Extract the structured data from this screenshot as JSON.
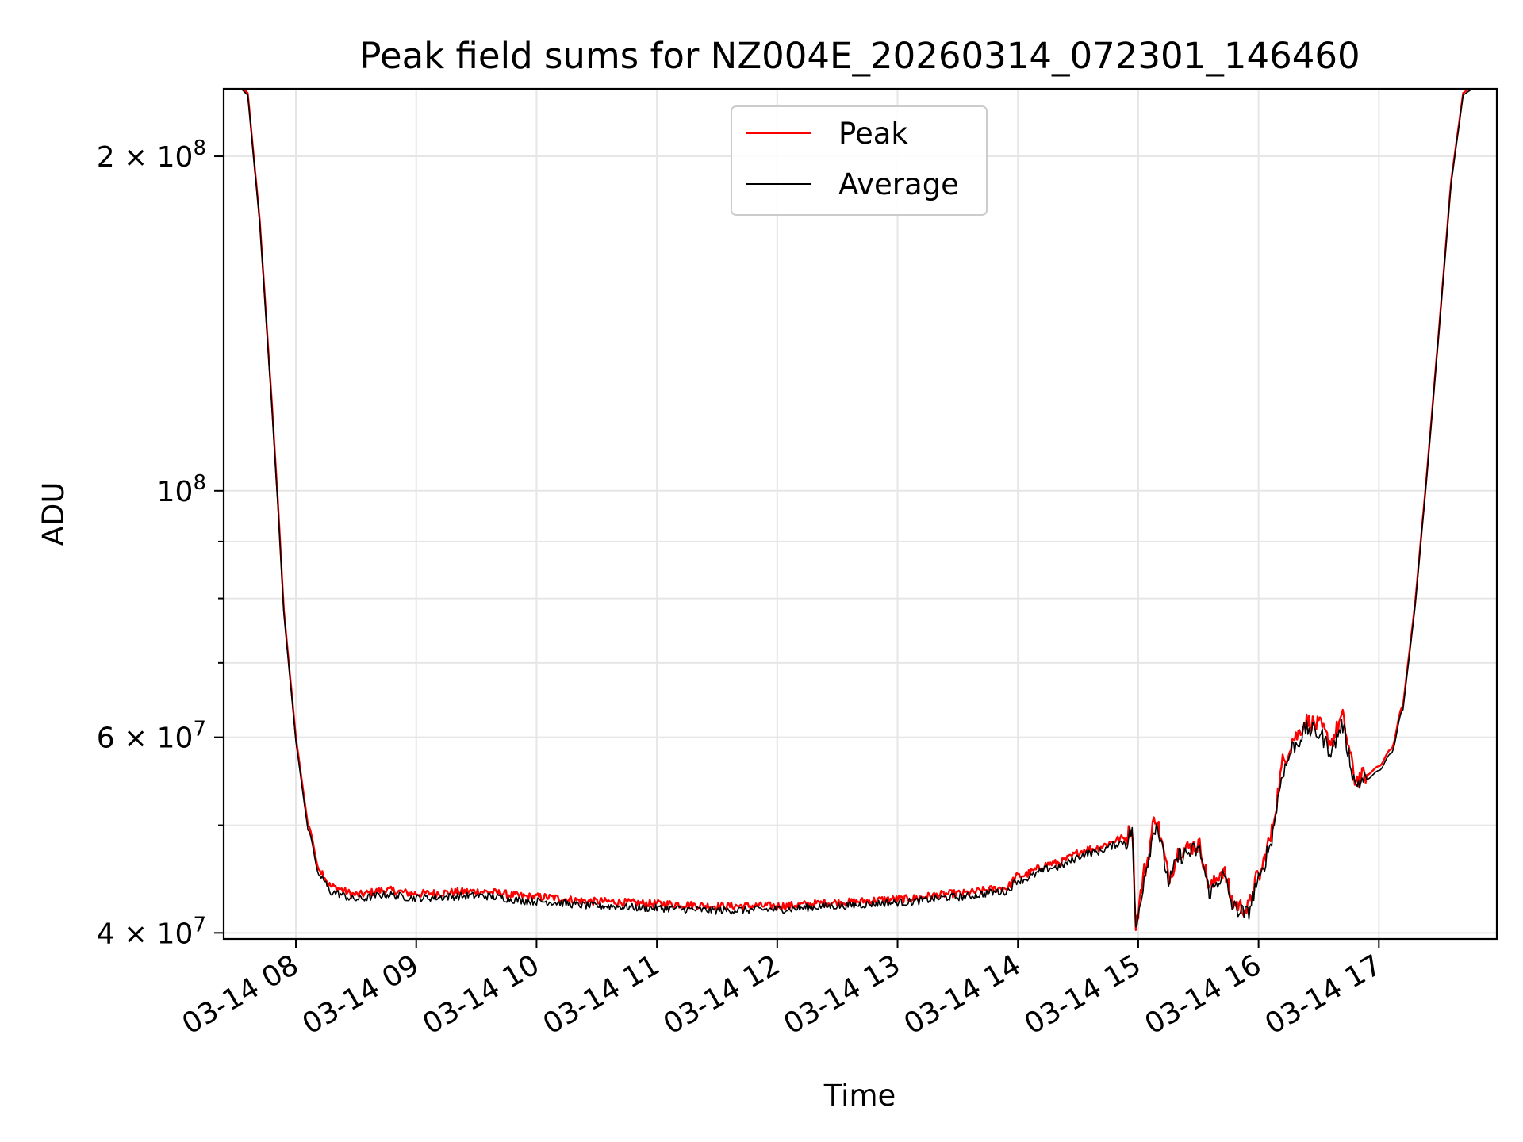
{
  "chart_data": {
    "type": "line",
    "title": "Peak field sums for NZ004E_20260314_072301_146460",
    "xlabel": "Time",
    "ylabel": "ADU",
    "yscale": "log",
    "ylim": [
      39500000,
      230000000
    ],
    "xlim_hours": [
      7.4,
      17.98
    ],
    "grid": true,
    "legend_position": "upper center",
    "x_ticks": [
      {
        "hour": 8,
        "label": "03-14 08"
      },
      {
        "hour": 9,
        "label": "03-14 09"
      },
      {
        "hour": 10,
        "label": "03-14 10"
      },
      {
        "hour": 11,
        "label": "03-14 11"
      },
      {
        "hour": 12,
        "label": "03-14 12"
      },
      {
        "hour": 13,
        "label": "03-14 13"
      },
      {
        "hour": 14,
        "label": "03-14 14"
      },
      {
        "hour": 15,
        "label": "03-14 15"
      },
      {
        "hour": 16,
        "label": "03-14 16"
      },
      {
        "hour": 17,
        "label": "03-14 17"
      }
    ],
    "y_major_ticks": [
      {
        "value": 40000000,
        "mant": "4",
        "exp": "7"
      },
      {
        "value": 60000000,
        "mant": "6",
        "exp": "7"
      },
      {
        "value": 100000000,
        "mant": "",
        "exp": "8"
      },
      {
        "value": 200000000,
        "mant": "2",
        "exp": "8"
      }
    ],
    "y_minor_gridlines": [
      50000000,
      70000000,
      80000000,
      90000000
    ],
    "series": [
      {
        "name": "Peak",
        "color": "#ff0000",
        "x_hours": [
          7.6,
          7.7,
          7.8,
          7.85,
          7.9,
          8.0,
          8.1,
          8.2,
          8.3,
          8.5,
          8.75,
          9.0,
          9.5,
          10.0,
          10.5,
          11.0,
          11.5,
          12.0,
          12.5,
          13.0,
          13.5,
          13.9,
          14.0,
          14.3,
          14.6,
          14.9,
          14.95,
          14.98,
          15.05,
          15.15,
          15.25,
          15.35,
          15.5,
          15.6,
          15.7,
          15.8,
          15.9,
          16.0,
          16.1,
          16.2,
          16.3,
          16.4,
          16.5,
          16.6,
          16.7,
          16.8,
          16.9,
          17.0,
          17.1,
          17.2,
          17.3,
          17.4,
          17.5,
          17.6,
          17.7
        ],
        "values": [
          228000000,
          175000000,
          120000000,
          98000000,
          78000000,
          60000000,
          50000000,
          45500000,
          44000000,
          43300000,
          43700000,
          43400000,
          43600000,
          43100000,
          42700000,
          42500000,
          42300000,
          42300000,
          42600000,
          42900000,
          43400000,
          43900000,
          45000000,
          46200000,
          47600000,
          48700000,
          50000000,
          40500000,
          45500000,
          51000000,
          45000000,
          47500000,
          48000000,
          44000000,
          45500000,
          42500000,
          42000000,
          45000000,
          48500000,
          57000000,
          60000000,
          62000000,
          61500000,
          59500000,
          62500000,
          55000000,
          55500000,
          56500000,
          58500000,
          64000000,
          79000000,
          104000000,
          140000000,
          190000000,
          228000000
        ]
      },
      {
        "name": "Average",
        "color": "#000000",
        "x_hours": [
          7.6,
          7.7,
          7.8,
          7.85,
          7.9,
          8.0,
          8.1,
          8.2,
          8.3,
          8.5,
          8.75,
          9.0,
          9.5,
          10.0,
          10.5,
          11.0,
          11.5,
          12.0,
          12.5,
          13.0,
          13.5,
          13.9,
          14.0,
          14.3,
          14.6,
          14.9,
          14.95,
          14.98,
          15.05,
          15.15,
          15.25,
          15.35,
          15.5,
          15.6,
          15.7,
          15.8,
          15.9,
          16.0,
          16.1,
          16.2,
          16.3,
          16.4,
          16.5,
          16.6,
          16.7,
          16.8,
          16.9,
          17.0,
          17.1,
          17.2,
          17.3,
          17.4,
          17.5,
          17.6,
          17.7
        ],
        "values": [
          227000000,
          174000000,
          119000000,
          97000000,
          77500000,
          59500000,
          49500000,
          45000000,
          43500000,
          42900000,
          43300000,
          43000000,
          43200000,
          42700000,
          42300000,
          42100000,
          41900000,
          42000000,
          42300000,
          42600000,
          43100000,
          43600000,
          44600000,
          45800000,
          47200000,
          48300000,
          49500000,
          40000000,
          45000000,
          50500000,
          44500000,
          47000000,
          47500000,
          43600000,
          45000000,
          42100000,
          41600000,
          44500000,
          48000000,
          56000000,
          59000000,
          61000000,
          60500000,
          58500000,
          61500000,
          54500000,
          55000000,
          56000000,
          58000000,
          63500000,
          78500000,
          103500000,
          139500000,
          189000000,
          227000000
        ]
      }
    ]
  }
}
